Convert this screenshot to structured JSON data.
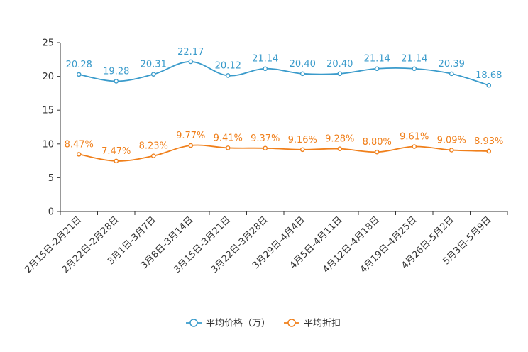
{
  "chart_data": {
    "type": "line",
    "title": "",
    "xlabel": "",
    "ylabel": "",
    "ylim": [
      0,
      25
    ],
    "yticks": [
      0,
      5,
      10,
      15,
      20,
      25
    ],
    "grid": false,
    "legend_position": "bottom-center",
    "categories": [
      "2月15日-2月21日",
      "2月22日-2月28日",
      "3月1日-3月7日",
      "3月8日-3月14日",
      "3月15日-3月21日",
      "3月22日-3月28日",
      "3月29日-4月4日",
      "4月5日-4月11日",
      "4月12日-4月18日",
      "4月19日-4月25日",
      "4月26日-5月2日",
      "5月3日-5月9日"
    ],
    "series": [
      {
        "name": "平均价格（万）",
        "color": "#3a9bcb",
        "values": [
          20.28,
          19.28,
          20.31,
          22.17,
          20.12,
          21.14,
          20.4,
          20.4,
          21.14,
          21.14,
          20.39,
          18.68
        ],
        "labels": [
          "20.28",
          "19.28",
          "20.31",
          "22.17",
          "20.12",
          "21.14",
          "20.40",
          "20.40",
          "21.14",
          "21.14",
          "20.39",
          "18.68"
        ]
      },
      {
        "name": "平均折扣",
        "color": "#f07f1a",
        "values": [
          8.47,
          7.47,
          8.23,
          9.77,
          9.41,
          9.37,
          9.16,
          9.28,
          8.8,
          9.61,
          9.09,
          8.93
        ],
        "labels": [
          "8.47%",
          "7.47%",
          "8.23%",
          "9.77%",
          "9.41%",
          "9.37%",
          "9.16%",
          "9.28%",
          "8.80%",
          "9.61%",
          "9.09%",
          "8.93%"
        ]
      }
    ]
  }
}
